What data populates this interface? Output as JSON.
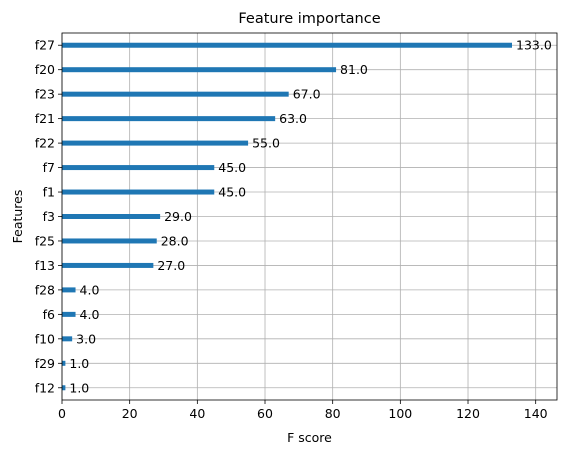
{
  "chart_data": {
    "type": "bar",
    "orientation": "horizontal",
    "title": "Feature importance",
    "xlabel": "F score",
    "ylabel": "Features",
    "categories": [
      "f27",
      "f20",
      "f23",
      "f21",
      "f22",
      "f7",
      "f1",
      "f3",
      "f25",
      "f13",
      "f28",
      "f6",
      "f10",
      "f29",
      "f12"
    ],
    "values": [
      133,
      81,
      67,
      63,
      55,
      45,
      45,
      29,
      28,
      27,
      4,
      4,
      3,
      1,
      1
    ],
    "value_labels": [
      "133.0",
      "81.0",
      "67.0",
      "63.0",
      "55.0",
      "45.0",
      "45.0",
      "29.0",
      "28.0",
      "27.0",
      "4.0",
      "4.0",
      "3.0",
      "1.0",
      "1.0"
    ],
    "xlim": [
      0,
      146.3
    ],
    "xticks": [
      0,
      20,
      40,
      60,
      80,
      100,
      120,
      140
    ],
    "xtick_labels": [
      "0",
      "20",
      "40",
      "60",
      "80",
      "100",
      "120",
      "140"
    ],
    "grid": true,
    "bar_color": "#1f77b4"
  }
}
